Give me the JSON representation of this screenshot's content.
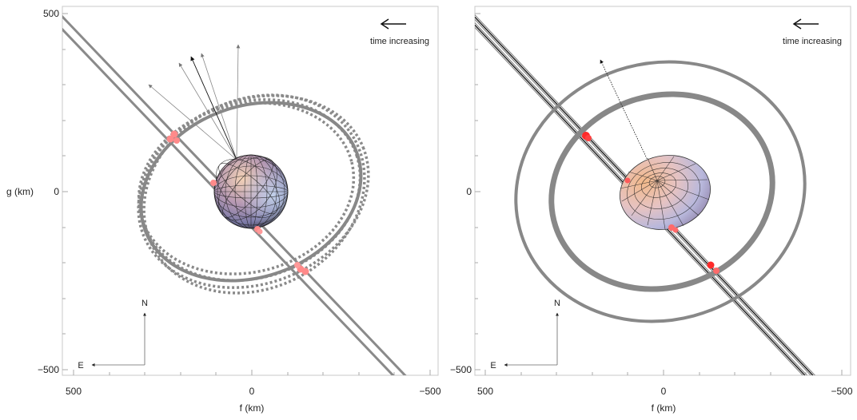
{
  "panels": [
    {
      "id": "left",
      "time_label": "time increasing",
      "north_label": "N",
      "east_label": "E",
      "xlabel": "f (km)",
      "ylabel": "g (km)",
      "x_ticks": [
        "500",
        "0",
        "−500"
      ],
      "y_ticks": [
        "500",
        "0",
        "−500"
      ],
      "body_shape": "sphere",
      "ring_style": "dotted-family"
    },
    {
      "id": "right",
      "time_label": "time increasing",
      "north_label": "N",
      "east_label": "E",
      "xlabel": "f (km)",
      "ylabel": "",
      "x_ticks": [
        "500",
        "0",
        "−500"
      ],
      "y_ticks": [
        "",
        "0",
        "−500"
      ],
      "body_shape": "ellipsoid",
      "ring_style": "double-ring"
    }
  ],
  "colors": {
    "chord": "#8a8a8a",
    "ring": "#888888",
    "contact": "#ff2a2a",
    "contact_faint": "#ff8a8a",
    "axis": "#bbbbbb"
  }
}
